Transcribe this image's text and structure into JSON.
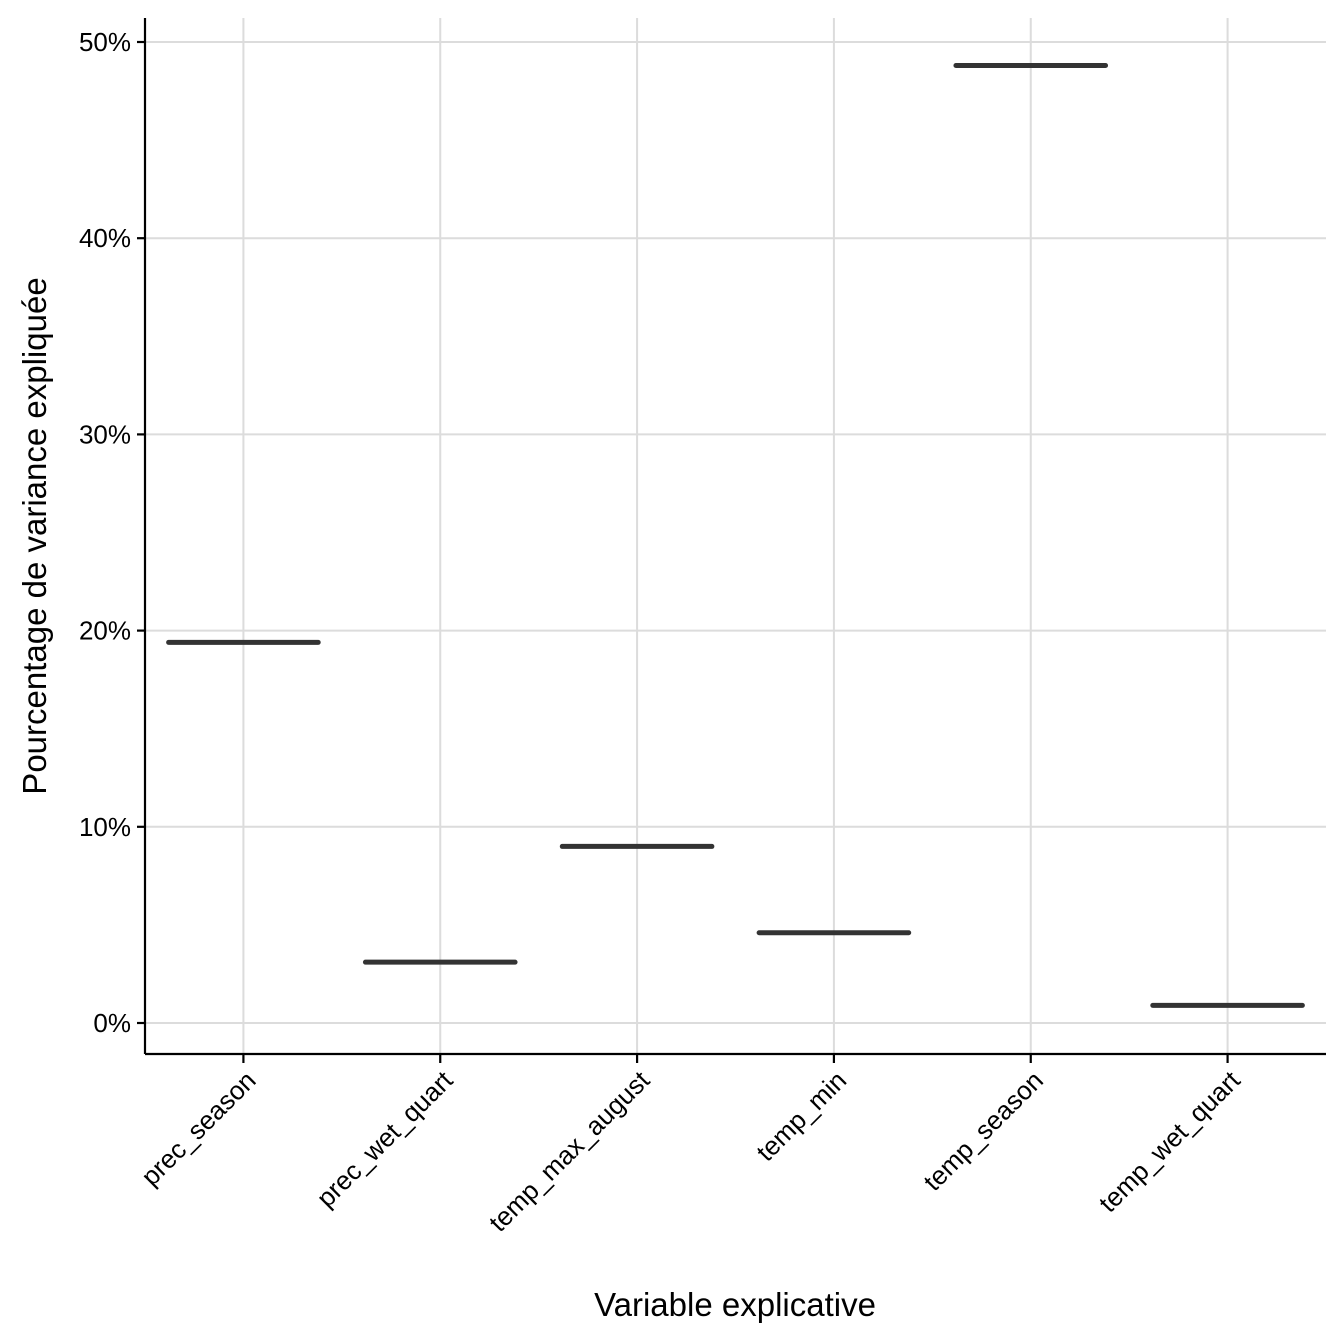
{
  "chart_data": {
    "type": "boxplot",
    "title": "",
    "xlabel": "Variable explicative",
    "ylabel": "Pourcentage de variance expliquée",
    "categories": [
      "prec_season",
      "prec_wet_quart",
      "temp_max_august",
      "temp_min",
      "temp_season",
      "temp_wet_quart"
    ],
    "values": [
      19.4,
      3.1,
      9.0,
      4.6,
      48.8,
      0.9
    ],
    "ylim": [
      -1.5,
      51.2
    ],
    "yticks": [
      0,
      10,
      20,
      30,
      40,
      50
    ],
    "ytick_labels": [
      "0%",
      "10%",
      "20%",
      "30%",
      "40%",
      "50%"
    ],
    "grid": true,
    "legend": "none",
    "line_color": "#333333"
  }
}
